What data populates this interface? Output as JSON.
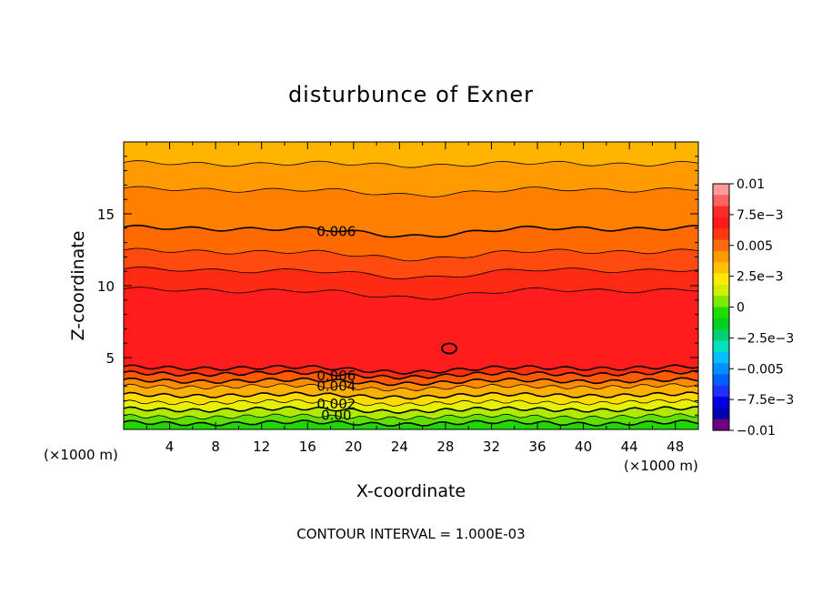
{
  "chart_data": {
    "type": "contour",
    "title": "disturbunce of Exner",
    "xlabel": "X-coordinate",
    "ylabel": "Z-coordinate",
    "x_unit": "(×1000 m)",
    "z_unit": "(×1000 m)",
    "xlim": [
      0,
      50
    ],
    "ylim": [
      0,
      20
    ],
    "x_ticks": [
      4,
      8,
      12,
      16,
      20,
      24,
      28,
      32,
      36,
      40,
      44,
      48
    ],
    "x_tick_labels": [
      "4",
      "8",
      "12",
      "16",
      "20",
      "24",
      "28",
      "32",
      "36",
      "40",
      "44",
      "48"
    ],
    "y_ticks": [
      5,
      10,
      15
    ],
    "y_tick_labels": [
      "5",
      "10",
      "15"
    ],
    "contour_interval_text": "CONTOUR INTERVAL = 1.000E-03",
    "contour_labels": [
      "0.006",
      "0.006",
      "0.004",
      "0.002",
      "0.00"
    ],
    "colorbar": {
      "ticks": [
        0.01,
        0.0075,
        0.005,
        0.0025,
        0,
        -0.0025,
        -0.005,
        -0.0075,
        -0.01
      ],
      "tick_labels": [
        "0.01",
        "7.5e−3",
        "0.005",
        "2.5e−3",
        "0",
        "−2.5e−3",
        "−0.005",
        "−7.5e−3",
        "−0.01"
      ],
      "colors": [
        "#ff9a9a",
        "#ff6060",
        "#ff2a2a",
        "#ff1a1a",
        "#ff3a10",
        "#ff6a10",
        "#ff9a00",
        "#ffc000",
        "#ffea00",
        "#d0f000",
        "#80e800",
        "#20dd00",
        "#00d020",
        "#00d070",
        "#00e0c0",
        "#00c0ff",
        "#0090ff",
        "#0060ff",
        "#2030ff",
        "#0000e0",
        "#0000b0",
        "#700080"
      ]
    },
    "bands": [
      {
        "color": "#ffb400"
      },
      {
        "color": "#ff9a00"
      },
      {
        "color": "#ff8000"
      },
      {
        "color": "#ff6a00"
      },
      {
        "color": "#ff4a10"
      },
      {
        "color": "#ff2a14"
      },
      {
        "color": "#ff1c1c"
      },
      {
        "color": "#ff3010"
      },
      {
        "color": "#ff5a00"
      },
      {
        "color": "#ff8c00"
      },
      {
        "color": "#ffb000"
      },
      {
        "color": "#ffdc00"
      },
      {
        "color": "#e6f000"
      },
      {
        "color": "#b0ea00"
      },
      {
        "color": "#60e000"
      },
      {
        "color": "#20d800"
      }
    ]
  }
}
